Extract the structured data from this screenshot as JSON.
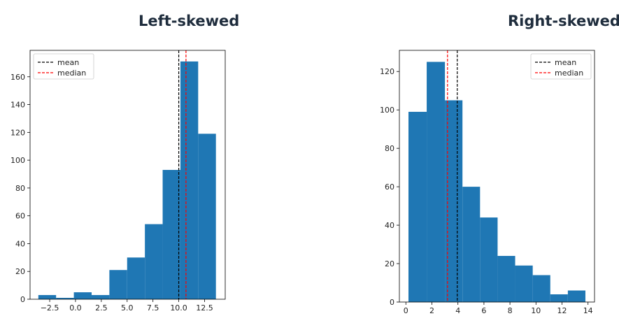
{
  "chart_data": [
    {
      "type": "bar",
      "title": "Left-skewed",
      "xlabel": "",
      "ylabel": "",
      "bin_edges": [
        -3.6,
        -1.88,
        -0.16,
        1.56,
        3.28,
        5.0,
        6.72,
        8.44,
        10.16,
        11.88,
        13.6
      ],
      "counts": [
        3,
        1,
        5,
        3,
        21,
        30,
        54,
        93,
        171,
        119
      ],
      "xlim": [
        -4.4,
        14.5
      ],
      "ylim": [
        0,
        179
      ],
      "xticks": [
        -2.5,
        0.0,
        2.5,
        5.0,
        7.5,
        10.0,
        12.5
      ],
      "xtick_labels": [
        "−2.5",
        "0.0",
        "2.5",
        "5.0",
        "7.5",
        "10.0",
        "12.5"
      ],
      "yticks": [
        0,
        20,
        40,
        60,
        80,
        100,
        120,
        140,
        160
      ],
      "ytick_labels": [
        "0",
        "20",
        "40",
        "60",
        "80",
        "100",
        "120",
        "140",
        "160"
      ],
      "mean": 10.0,
      "median": 10.7,
      "color": "#1f77b4",
      "legend": [
        {
          "label": "mean",
          "color": "#000000"
        },
        {
          "label": "median",
          "color": "#ff0000"
        }
      ],
      "legend_position": "top-left"
    },
    {
      "type": "bar",
      "title": "Right-skewed",
      "xlabel": "",
      "ylabel": "",
      "bin_edges": [
        0.2,
        1.6,
        3.0,
        4.35,
        5.7,
        7.05,
        8.4,
        9.75,
        11.1,
        12.45,
        13.8
      ],
      "counts": [
        99,
        125,
        105,
        60,
        44,
        24,
        19,
        14,
        4,
        6
      ],
      "xlim": [
        -0.5,
        14.5
      ],
      "ylim": [
        0,
        131
      ],
      "xticks": [
        0,
        2,
        4,
        6,
        8,
        10,
        12,
        14
      ],
      "xtick_labels": [
        "0",
        "2",
        "4",
        "6",
        "8",
        "10",
        "12",
        "14"
      ],
      "yticks": [
        0,
        20,
        40,
        60,
        80,
        100,
        120
      ],
      "ytick_labels": [
        "0",
        "20",
        "40",
        "60",
        "80",
        "100",
        "120"
      ],
      "mean": 3.95,
      "median": 3.2,
      "color": "#1f77b4",
      "legend": [
        {
          "label": "mean",
          "color": "#000000"
        },
        {
          "label": "median",
          "color": "#ff0000"
        }
      ],
      "legend_position": "top-right"
    }
  ]
}
